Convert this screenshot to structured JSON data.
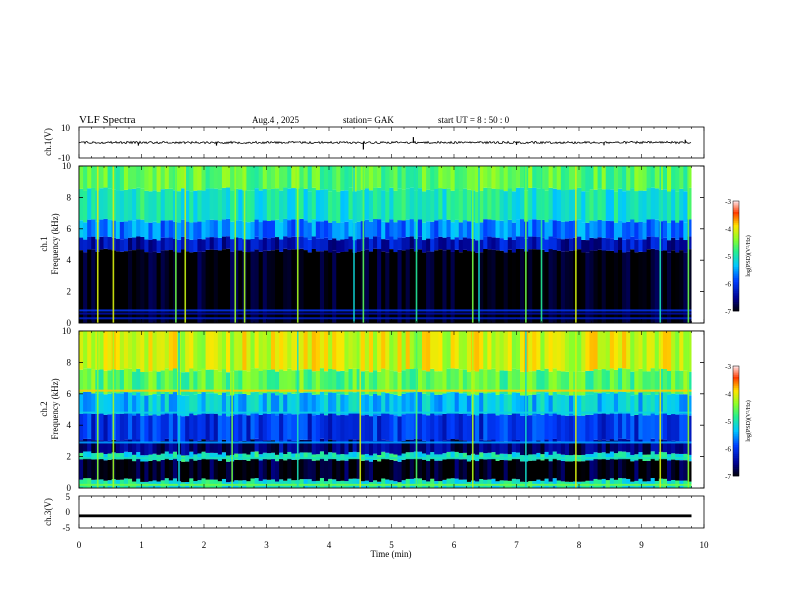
{
  "header": {
    "title": "VLF  Spectra",
    "date": "Aug.4   , 2025",
    "station": "station= GAK",
    "start": "start  UT  =    8   : 50 : 0"
  },
  "colorbar_label": "log(PSD)(V²/Hz)",
  "chart_data": [
    {
      "type": "line",
      "name": "ch1-waveform",
      "ylabel": "ch.1(V)",
      "ylim": [
        -10,
        10
      ],
      "yticks": [
        "10",
        "-10"
      ],
      "xlim": [
        0,
        10
      ],
      "baseline": 0,
      "spikes": [
        {
          "x": 4.55,
          "y": -4.5
        },
        {
          "x": 5.35,
          "y": 3.5
        },
        {
          "x": 0.95,
          "y": -2.0
        },
        {
          "x": 2.2,
          "y": -2.0
        },
        {
          "x": 7.0,
          "y": -1.5
        },
        {
          "x": 8.4,
          "y": -1.8
        },
        {
          "x": 9.7,
          "y": 1.8
        }
      ]
    },
    {
      "type": "heatmap",
      "name": "ch1-spectrogram",
      "ylabel": "ch.1",
      "ylabel2": "Frequency  (kHz)",
      "ylim": [
        0,
        10
      ],
      "yticks": [
        "0",
        "2",
        "4",
        "6",
        "8",
        "10"
      ],
      "xlim": [
        0,
        9.8
      ],
      "color_scale": [
        -7,
        -3
      ],
      "colorbar_ticks": [
        "-3",
        "-4",
        "-5",
        "-6",
        "-7"
      ],
      "bands": [
        {
          "f0": 0,
          "f1": 4.6,
          "level": -7.0
        },
        {
          "f0": 4.6,
          "f1": 5.4,
          "level": -6.3
        },
        {
          "f0": 5.4,
          "f1": 6.5,
          "level": -5.6
        },
        {
          "f0": 6.5,
          "f1": 8.5,
          "level": -5.0
        },
        {
          "f0": 8.5,
          "f1": 10,
          "level": -4.6
        }
      ],
      "lines": [
        {
          "f": 0.3,
          "level": -6.2
        },
        {
          "f": 0.6,
          "level": -6.4
        },
        {
          "f": 0.8,
          "level": -6.0
        }
      ],
      "events": [
        0.3,
        0.55,
        1.55,
        1.7,
        2.5,
        2.65,
        3.5,
        4.4,
        4.55,
        5.4,
        6.3,
        6.4,
        7.15,
        7.4,
        7.95,
        9.3,
        9.75
      ]
    },
    {
      "type": "heatmap",
      "name": "ch2-spectrogram",
      "ylabel": "ch.2",
      "ylabel2": "Frequency  (kHz)",
      "ylim": [
        0,
        10
      ],
      "yticks": [
        "0",
        "2",
        "4",
        "6",
        "8",
        "10"
      ],
      "xlim": [
        0,
        9.8
      ],
      "color_scale": [
        -7,
        -3
      ],
      "colorbar_ticks": [
        "-3",
        "-4",
        "-5",
        "-6",
        "-7"
      ],
      "bands": [
        {
          "f0": 0,
          "f1": 0.5,
          "level": -5.0
        },
        {
          "f0": 0.5,
          "f1": 1.8,
          "level": -6.9
        },
        {
          "f0": 1.8,
          "f1": 2.2,
          "level": -5.0
        },
        {
          "f0": 2.2,
          "f1": 3.0,
          "level": -6.6
        },
        {
          "f0": 3.0,
          "f1": 4.7,
          "level": -6.0
        },
        {
          "f0": 4.7,
          "f1": 6.0,
          "level": -5.3
        },
        {
          "f0": 6.0,
          "f1": 7.5,
          "level": -4.6
        },
        {
          "f0": 7.5,
          "f1": 10,
          "level": -4.1
        }
      ],
      "lines": [
        {
          "f": 1.9,
          "level": -5.0
        },
        {
          "f": 2.9,
          "level": -5.5
        },
        {
          "f": 4.8,
          "level": -5.2
        },
        {
          "f": 6.2,
          "level": -3.8
        },
        {
          "f": 0.2,
          "level": -4.5
        }
      ],
      "events": [
        0.3,
        0.55,
        1.6,
        2.45,
        3.5,
        4.5,
        5.4,
        6.3,
        7.15,
        7.95,
        9.3,
        9.75
      ]
    },
    {
      "type": "line",
      "name": "ch3-waveform",
      "ylabel": "ch.3(V)",
      "ylim": [
        -5,
        5
      ],
      "yticks": [
        "5",
        "0",
        "-5"
      ],
      "xlim": [
        0,
        9.8
      ],
      "baseline": -1.2
    }
  ],
  "xaxis": {
    "label": "Time  (min)",
    "ticks": [
      "0",
      "1",
      "2",
      "3",
      "4",
      "5",
      "6",
      "7",
      "8",
      "9",
      "10"
    ],
    "xlim": [
      0,
      10
    ]
  }
}
